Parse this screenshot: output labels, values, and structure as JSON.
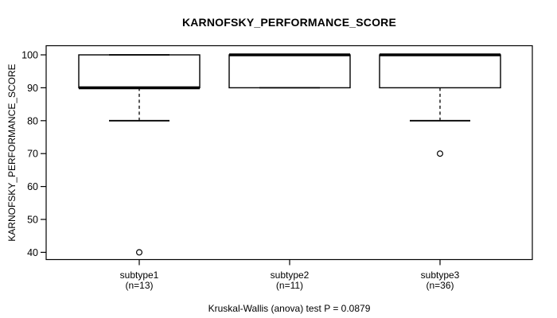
{
  "chart_data": {
    "type": "boxplot",
    "title": "KARNOFSKY_PERFORMANCE_SCORE",
    "ylabel": "KARNOFSKY_PERFORMANCE_SCORE",
    "annotation": "Kruskal-Wallis (anova) test P = 0.0879",
    "ylim": [
      40,
      100
    ],
    "yticks": [
      40,
      50,
      60,
      70,
      80,
      90,
      100
    ],
    "grid": false,
    "legend": "none",
    "frame_color": "#000000",
    "box_fill": "#ffffff",
    "box_stroke": "#000000",
    "background": "#ffffff",
    "categories": [
      "subtype1",
      "subtype2",
      "subtype3"
    ],
    "groups": [
      {
        "category": "subtype1",
        "n_label": "(n=13)",
        "n": 13,
        "whisker_low": 80,
        "q1": 90,
        "median": 90,
        "q3": 100,
        "whisker_high": 100,
        "outliers": [
          40
        ]
      },
      {
        "category": "subtype2",
        "n_label": "(n=11)",
        "n": 11,
        "whisker_low": 90,
        "q1": 90,
        "median": 100,
        "q3": 100,
        "whisker_high": 100,
        "outliers": []
      },
      {
        "category": "subtype3",
        "n_label": "(n=36)",
        "n": 36,
        "whisker_low": 80,
        "q1": 90,
        "median": 100,
        "q3": 100,
        "whisker_high": 100,
        "outliers": [
          70
        ]
      }
    ]
  }
}
